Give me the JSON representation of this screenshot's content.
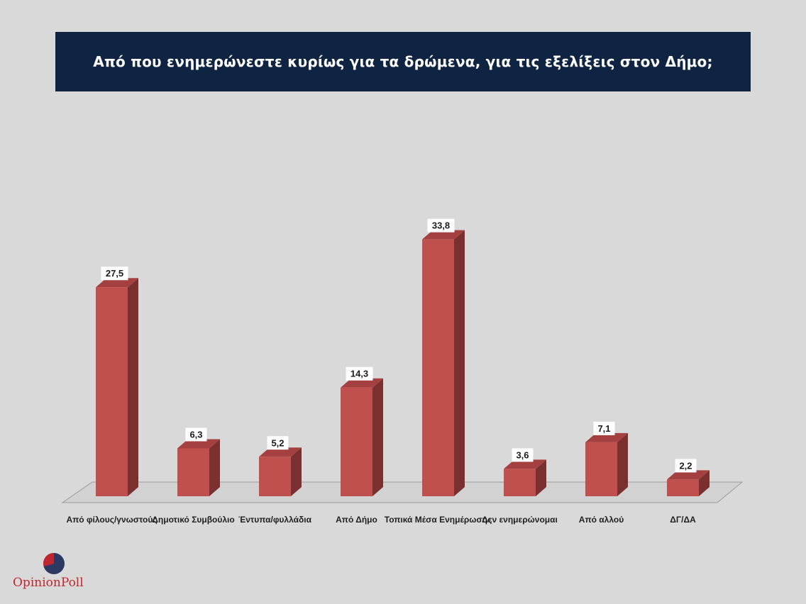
{
  "title": "Από που ενημερώνεστε κυρίως για τα δρώμενα, για τις εξελίξεις στον Δήμο;",
  "logo": {
    "text": "OpinionPoll"
  },
  "colors": {
    "banner": "#0f2442",
    "bar_front": "#c0504d",
    "bar_side": "#7b3030",
    "bar_top": "#a54040",
    "floor": "#d2d2d2",
    "background": "#d9d9d9"
  },
  "chart_data": {
    "type": "bar",
    "title": "Από που ενημερώνεστε κυρίως για τα δρώμενα, για τις εξελίξεις στον Δήμο;",
    "categories": [
      "Από φίλους/γνωστούς",
      "Δημοτικό Συμβούλιο",
      "Έντυπα/φυλλάδια",
      "Από Δήμο",
      "Τοπικά Μέσα Ενημέρωσης",
      "Δεν ενημερώνομαι",
      "Από αλλού",
      "ΔΓ/ΔΑ"
    ],
    "category_labels_rendered": [
      "Από φίλους/γνωστούς",
      "Δημοτικό Συμβούλιο",
      "Έντυπα/φυλλάδια",
      "Από Δήμο",
      "Τοπικά Μέσα Ενημέρωσης",
      "Δεν ενημερώνομαι",
      "Από αλλού",
      "ΔΓ/ΔΑ"
    ],
    "values": [
      27.5,
      6.3,
      5.2,
      14.3,
      33.8,
      3.6,
      7.1,
      2.2
    ],
    "value_labels": [
      "27,5",
      "6,3",
      "5,2",
      "14,3",
      "33,8",
      "3,6",
      "7,1",
      "2,2"
    ],
    "ylim": [
      0,
      35
    ],
    "grid": false,
    "legend": "none",
    "style": "3d-column"
  }
}
